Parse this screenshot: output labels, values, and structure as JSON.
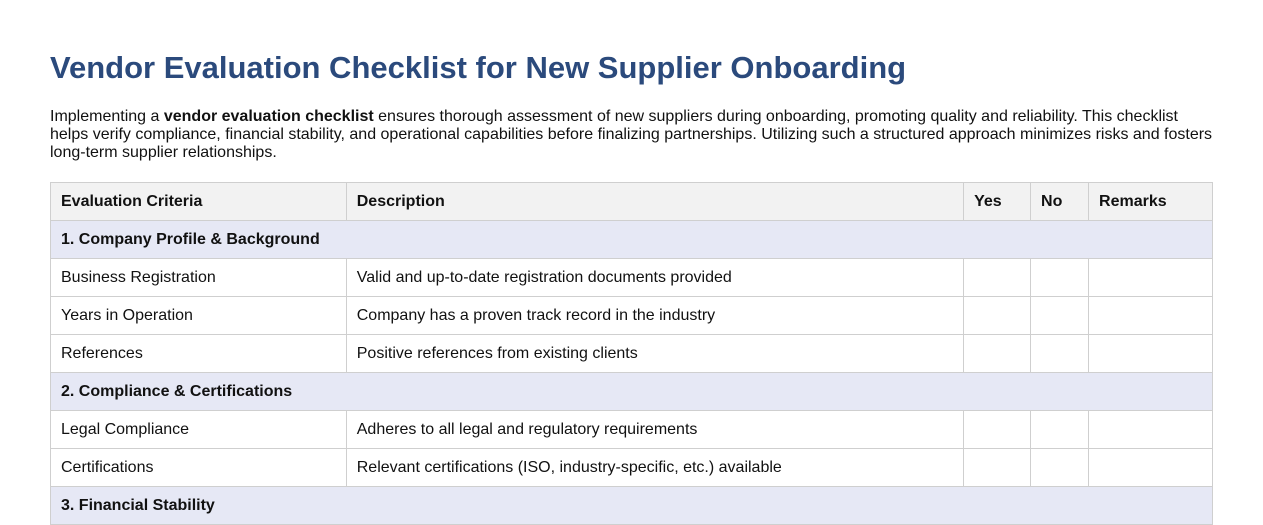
{
  "header": {
    "title": "Vendor Evaluation Checklist for New Supplier Onboarding"
  },
  "intro": {
    "before": "Implementing a",
    "bold": "vendor evaluation checklist",
    "after": "ensures thorough assessment of new suppliers during onboarding, promoting quality and reliability. This checklist helps verify compliance, financial stability, and operational capabilities before finalizing partnerships. Utilizing such a structured approach minimizes risks and fosters long-term supplier relationships."
  },
  "table": {
    "columns": [
      "Evaluation Criteria",
      "Description",
      "Yes",
      "No",
      "Remarks"
    ],
    "rows": [
      {
        "section": "1. Company Profile & Background"
      },
      {
        "criteria": "Business Registration",
        "description": "Valid and up-to-date registration documents provided"
      },
      {
        "criteria": "Years in Operation",
        "description": "Company has a proven track record in the industry"
      },
      {
        "criteria": "References",
        "description": "Positive references from existing clients"
      },
      {
        "section": "2. Compliance & Certifications"
      },
      {
        "criteria": "Legal Compliance",
        "description": "Adheres to all legal and regulatory requirements"
      },
      {
        "criteria": "Certifications",
        "description": "Relevant certifications (ISO, industry-specific, etc.) available"
      },
      {
        "section": "3. Financial Stability"
      }
    ]
  }
}
